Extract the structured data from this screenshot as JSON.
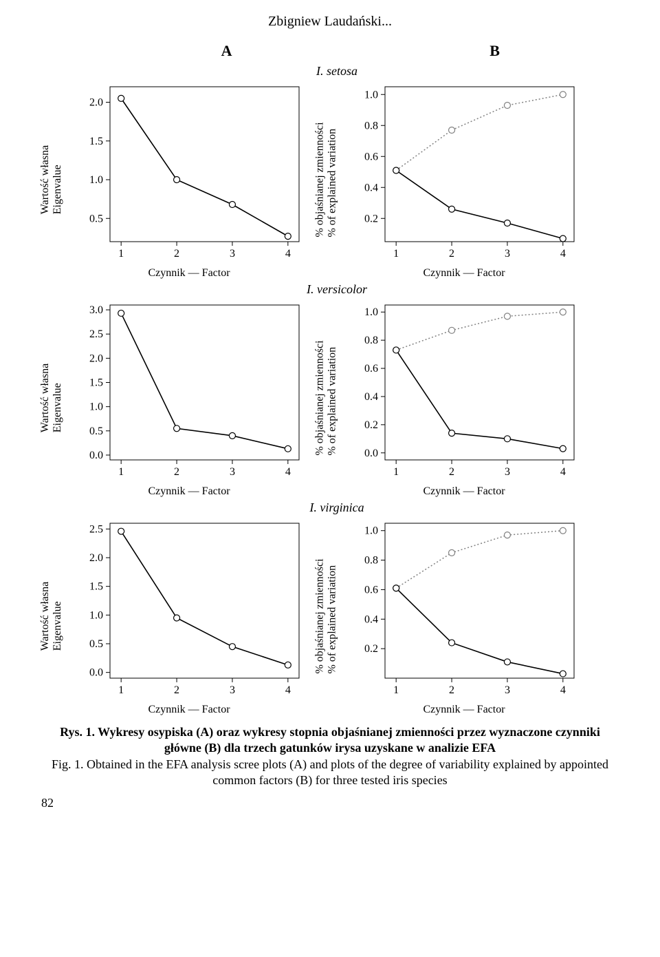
{
  "author_header": "Zbigniew Laudański...",
  "columns": {
    "A": "A",
    "B": "B"
  },
  "species": [
    "I. setosa",
    "I. versicolor",
    "I. virginica"
  ],
  "ylabel_A_pl": "Wartość własna",
  "ylabel_A_en": "Eigenvalue",
  "ylabel_B_pl": "% objaśnianej zmienności",
  "ylabel_B_en": "% of explained variation",
  "xlabel": "Czynnik — Factor",
  "caption_pl": "Rys. 1. Wykresy osypiska (A) oraz wykresy stopnia objaśnianej zmienności przez wyznaczone czynniki główne (B) dla trzech gatunków irysa uzyskane w analizie EFA",
  "caption_en": "Fig. 1. Obtained in the EFA analysis scree plots (A) and plots of the degree of variability explained by appointed common factors (B) for three tested iris species",
  "page_number": "82",
  "plot": {
    "line_color": "#000000",
    "dotted_color": "#808080",
    "marker_fill": "#ffffff",
    "marker_stroke": "#000000",
    "axis_color": "#000000",
    "tick_font_size": 16,
    "plot_bg": "#ffffff"
  },
  "panels": {
    "A_setosa": {
      "yticks": [
        0.5,
        1.0,
        1.5,
        2.0
      ],
      "ylim": [
        0.2,
        2.2
      ],
      "x": [
        1,
        2,
        3,
        4
      ],
      "y": [
        2.05,
        1.0,
        0.68,
        0.27
      ],
      "xticks": [
        1,
        2,
        3,
        4
      ]
    },
    "B_setosa": {
      "yticks": [
        0.2,
        0.4,
        0.6,
        0.8,
        1.0
      ],
      "ylim": [
        0.05,
        1.05
      ],
      "x": [
        1,
        2,
        3,
        4
      ],
      "y_solid": [
        0.51,
        0.26,
        0.17,
        0.07
      ],
      "y_dotted": [
        0.51,
        0.77,
        0.93,
        1.0
      ],
      "xticks": [
        1,
        2,
        3,
        4
      ]
    },
    "A_versicolor": {
      "yticks": [
        0.0,
        0.5,
        1.0,
        1.5,
        2.0,
        2.5,
        3.0
      ],
      "ylim": [
        -0.1,
        3.1
      ],
      "x": [
        1,
        2,
        3,
        4
      ],
      "y": [
        2.93,
        0.55,
        0.4,
        0.13
      ],
      "xticks": [
        1,
        2,
        3,
        4
      ]
    },
    "B_versicolor": {
      "yticks": [
        0.0,
        0.2,
        0.4,
        0.6,
        0.8,
        1.0
      ],
      "ylim": [
        -0.05,
        1.05
      ],
      "x": [
        1,
        2,
        3,
        4
      ],
      "y_solid": [
        0.73,
        0.14,
        0.1,
        0.03
      ],
      "y_dotted": [
        0.73,
        0.87,
        0.97,
        1.0
      ],
      "xticks": [
        1,
        2,
        3,
        4
      ]
    },
    "A_virginica": {
      "yticks": [
        0.0,
        0.5,
        1.0,
        1.5,
        2.0,
        2.5
      ],
      "ylim": [
        -0.1,
        2.6
      ],
      "x": [
        1,
        2,
        3,
        4
      ],
      "y": [
        2.46,
        0.95,
        0.45,
        0.13
      ],
      "xticks": [
        1,
        2,
        3,
        4
      ]
    },
    "B_virginica": {
      "yticks": [
        0.2,
        0.4,
        0.6,
        0.8,
        1.0
      ],
      "ylim": [
        0.0,
        1.05
      ],
      "x": [
        1,
        2,
        3,
        4
      ],
      "y_solid": [
        0.61,
        0.24,
        0.11,
        0.03
      ],
      "y_dotted": [
        0.61,
        0.85,
        0.97,
        1.0
      ],
      "xticks": [
        1,
        2,
        3,
        4
      ]
    }
  }
}
